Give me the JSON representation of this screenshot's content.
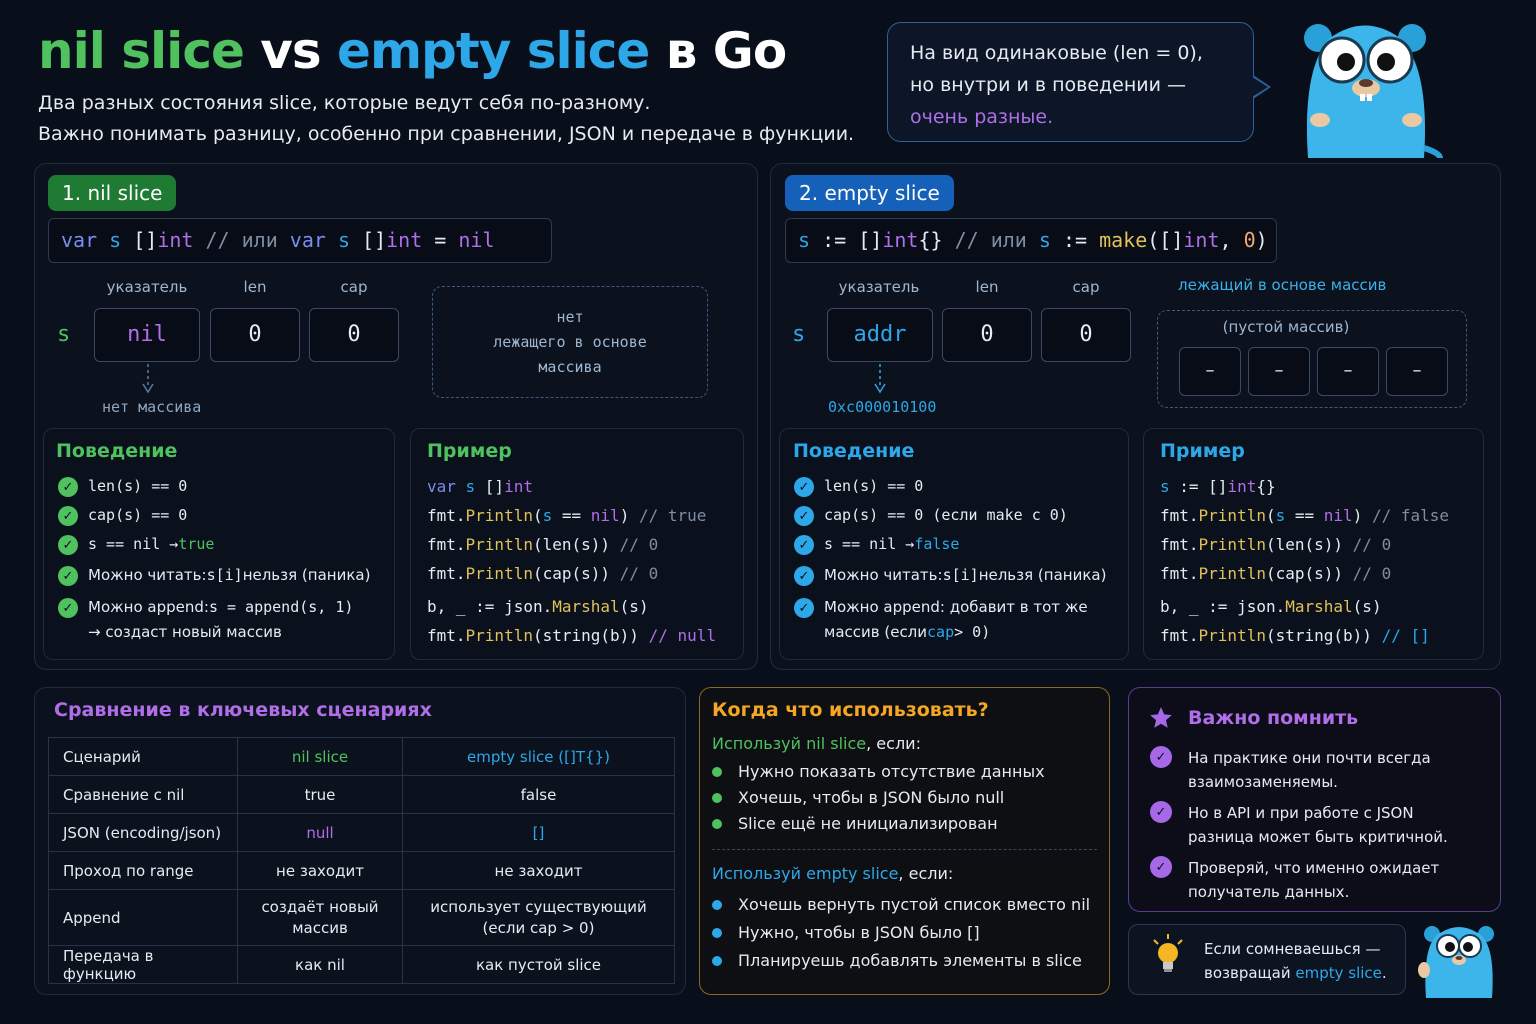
{
  "title": {
    "nil": "nil slice",
    "vs": " vs ",
    "empty": "empty slice",
    "rest": " в Go"
  },
  "subtitle": [
    "Два разных состояния slice, которые ведут себя по-разному.",
    "Важно понимать разницу, особенно при сравнении, JSON и передаче в функции."
  ],
  "bubble": {
    "line1": "На вид одинаковые (len = 0),",
    "line2": "но внутри и в поведении —",
    "line3": "очень разные."
  },
  "nil_panel": {
    "badge": "1. nil slice",
    "code": [
      "var",
      " s ",
      "[]",
      "int",
      " // или ",
      "var",
      " s ",
      "[]",
      "int",
      " = ",
      "nil"
    ],
    "headers": [
      "указатель",
      "len",
      "cap"
    ],
    "var": "s",
    "cells": [
      "nil",
      "0",
      "0"
    ],
    "note": "нет массива",
    "no_array": [
      "нет",
      "лежащего в основе",
      "массива"
    ],
    "behavior_title": "Поведение",
    "behavior": [
      [
        "len(s) == 0",
        ""
      ],
      [
        "cap(s) == 0",
        ""
      ],
      [
        "s == nil → ",
        "true"
      ],
      [
        "Можно читать: ",
        "s[i]",
        " нельзя (паника)"
      ],
      [
        "Можно append: ",
        "s = append(s, 1)"
      ],
      [
        "→ создаст новый массив"
      ]
    ],
    "example_title": "Пример",
    "example": [
      [
        "var s []int"
      ],
      [
        "fmt.",
        "Println",
        "(s == nil) ",
        "// true"
      ],
      [
        "fmt.",
        "Println",
        "(len(s))  ",
        "// 0"
      ],
      [
        "fmt.",
        "Println",
        "(cap(s))  ",
        "// 0"
      ],
      [
        "b, _ := json.",
        "Marshal",
        "(s)"
      ],
      [
        "fmt.",
        "Println",
        "(string(b))  ",
        "// null"
      ]
    ]
  },
  "empty_panel": {
    "badge": "2. empty slice",
    "code": [
      "s",
      " := ",
      "[]",
      "int",
      "{}",
      " // или ",
      "s",
      " := ",
      "make",
      "([]",
      "int",
      ", ",
      "0",
      ")"
    ],
    "headers": [
      "указатель",
      "len",
      "cap"
    ],
    "array_label": "лежащий в основе массив",
    "var": "s",
    "cells": [
      "addr",
      "0",
      "0"
    ],
    "addr": "0xc000010100",
    "empty_array": "(пустой массив)",
    "array_cells": [
      "–",
      "–",
      "–",
      "–"
    ],
    "behavior_title": "Поведение",
    "behavior": [
      [
        "len(s) == 0"
      ],
      [
        "cap(s) == 0 (если make с 0)"
      ],
      [
        "s == nil → ",
        "false"
      ],
      [
        "Можно читать: ",
        "s[i]",
        " нельзя (паника)"
      ],
      [
        "Можно append: добавит в тот же"
      ],
      [
        "массив (если ",
        "cap",
        " > 0)"
      ]
    ],
    "example_title": "Пример",
    "example": [
      [
        "s := []int{}"
      ],
      [
        "fmt.",
        "Println",
        "(s == nil) ",
        "// false"
      ],
      [
        "fmt.",
        "Println",
        "(len(s))  ",
        "// 0"
      ],
      [
        "fmt.",
        "Println",
        "(cap(s))  ",
        "// 0"
      ],
      [
        "b, _ := json.",
        "Marshal",
        "(s)"
      ],
      [
        "fmt.",
        "Println",
        "(string(b))  ",
        "// []"
      ]
    ]
  },
  "comparison": {
    "title": "Сравнение в ключевых сценариях",
    "headers": [
      "Сценарий",
      "nil slice",
      "empty slice ([]T{})"
    ],
    "rows": [
      [
        "Сравнение с nil",
        "true",
        "false"
      ],
      [
        "JSON (encoding/json)",
        "null",
        "[]"
      ],
      [
        "Проход по range",
        "не заходит",
        "не заходит"
      ],
      [
        "Append",
        "создаёт новый\nмассив",
        "использует существующий\n(если cap > 0)"
      ],
      [
        "Передача в функцию",
        "как nil",
        "как пустой slice"
      ]
    ]
  },
  "when": {
    "title": "Когда что использовать?",
    "nil_head": [
      "Используй nil slice",
      ", если:"
    ],
    "nil_items": [
      "Нужно показать отсутствие данных",
      "Хочешь, чтобы в JSON было null",
      "Slice ещё не инициализирован"
    ],
    "empty_head": [
      "Используй empty slice",
      ", если:"
    ],
    "empty_items": [
      "Хочешь вернуть пустой список вместо nil",
      "Нужно, чтобы в JSON было []",
      "Планируешь добавлять элементы в slice"
    ]
  },
  "remember": {
    "title": "Важно помнить",
    "items": [
      [
        "На практике они почти всегда",
        "взаимозаменяемы."
      ],
      [
        "Но в API и при работе с JSON",
        "разница может быть критичной."
      ],
      [
        "Проверяй, что именно ожидает",
        "получатель данных."
      ]
    ]
  },
  "tip": {
    "line1": "Если сомневаешься —",
    "line2a": "возвращай ",
    "line2b": "empty slice",
    "line2c": "."
  },
  "colors": {
    "green": "#4fc15e",
    "blue": "#2ea7e8",
    "purple": "#b06ee8",
    "orange": "#f5a623",
    "background": "#090f1a"
  }
}
